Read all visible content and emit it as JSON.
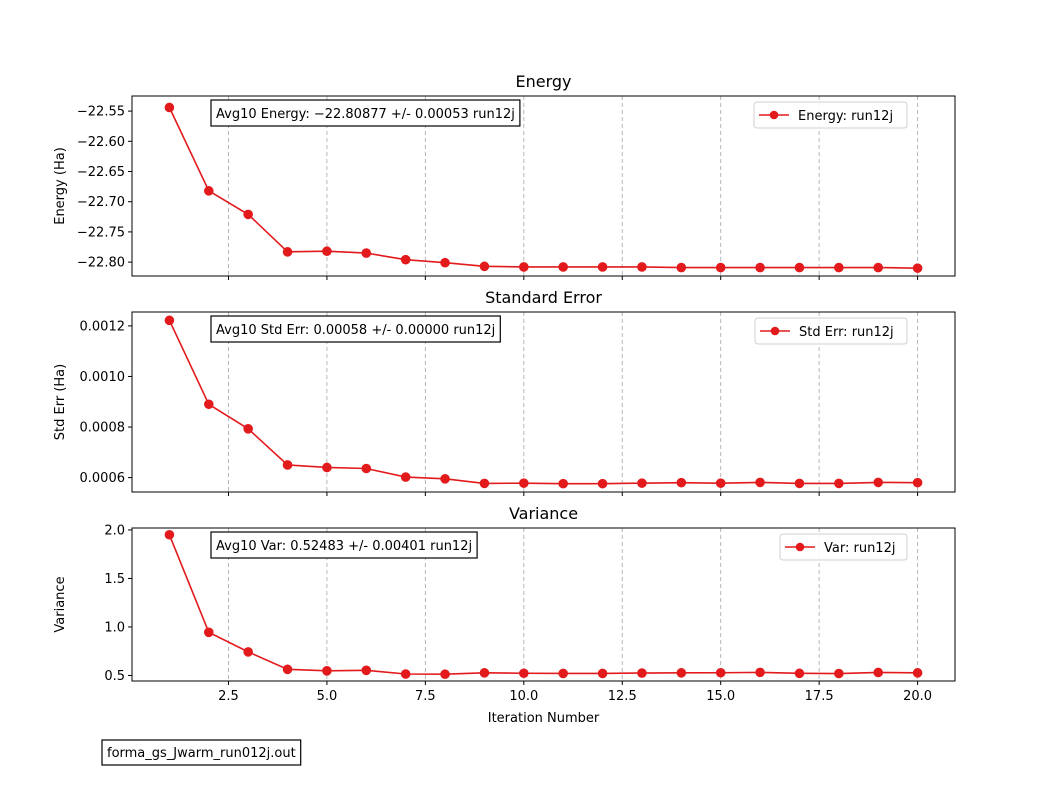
{
  "chart_data": [
    {
      "type": "line",
      "title": "Energy",
      "xlabel": "",
      "ylabel": "Energy (Ha)",
      "x": [
        1,
        2,
        3,
        4,
        5,
        6,
        7,
        8,
        9,
        10,
        11,
        12,
        13,
        14,
        15,
        16,
        17,
        18,
        19,
        20
      ],
      "xlim": [
        0.05,
        20.95
      ],
      "ylim": [
        -22.823,
        -22.525
      ],
      "yticks": [
        -22.8,
        -22.75,
        -22.7,
        -22.65,
        -22.6,
        -22.55
      ],
      "ytick_labels": [
        "−22.80",
        "−22.75",
        "−22.70",
        "−22.65",
        "−22.60",
        "−22.55"
      ],
      "xticks": [
        2.5,
        5.0,
        7.5,
        10.0,
        12.5,
        15.0,
        17.5,
        20.0
      ],
      "xtick_labels": [],
      "grid": "x-dashed",
      "legend": "top-right",
      "annotation": "Avg10 Energy: −22.80877 +/- 0.00053  run12j",
      "series": [
        {
          "name": "Energy: run12j",
          "color": "#e31a1c",
          "values": [
            -22.544,
            -22.682,
            -22.721,
            -22.783,
            -22.782,
            -22.785,
            -22.796,
            -22.801,
            -22.807,
            -22.808,
            -22.808,
            -22.808,
            -22.808,
            -22.809,
            -22.809,
            -22.809,
            -22.809,
            -22.809,
            -22.809,
            -22.81
          ]
        }
      ]
    },
    {
      "type": "line",
      "title": "Standard Error",
      "xlabel": "",
      "ylabel": "Std Err (Ha)",
      "x": [
        1,
        2,
        3,
        4,
        5,
        6,
        7,
        8,
        9,
        10,
        11,
        12,
        13,
        14,
        15,
        16,
        17,
        18,
        19,
        20
      ],
      "xlim": [
        0.05,
        20.95
      ],
      "ylim": [
        0.000543,
        0.001255
      ],
      "yticks": [
        0.0006,
        0.0008,
        0.001,
        0.0012
      ],
      "ytick_labels": [
        "0.0006",
        "0.0008",
        "0.0010",
        "0.0012"
      ],
      "xticks": [
        2.5,
        5.0,
        7.5,
        10.0,
        12.5,
        15.0,
        17.5,
        20.0
      ],
      "xtick_labels": [],
      "grid": "x-dashed",
      "legend": "top-right",
      "annotation": "Avg10 Std Err: 0.00058 +/- 0.00000  run12j",
      "series": [
        {
          "name": "Std Err: run12j",
          "color": "#e31a1c",
          "values": [
            0.001222,
            0.00089,
            0.000793,
            0.00065,
            0.00064,
            0.000636,
            0.000602,
            0.000595,
            0.000577,
            0.000578,
            0.000576,
            0.000576,
            0.000578,
            0.00058,
            0.000578,
            0.000581,
            0.000577,
            0.000577,
            0.000581,
            0.00058
          ]
        }
      ]
    },
    {
      "type": "line",
      "title": "Variance",
      "xlabel": "Iteration Number",
      "ylabel": "Variance",
      "x": [
        1,
        2,
        3,
        4,
        5,
        6,
        7,
        8,
        9,
        10,
        11,
        12,
        13,
        14,
        15,
        16,
        17,
        18,
        19,
        20
      ],
      "xlim": [
        0.05,
        20.95
      ],
      "ylim": [
        0.443,
        2.02
      ],
      "yticks": [
        0.5,
        1.0,
        1.5,
        2.0
      ],
      "ytick_labels": [
        "0.5",
        "1.0",
        "1.5",
        "2.0"
      ],
      "xticks": [
        2.5,
        5.0,
        7.5,
        10.0,
        12.5,
        15.0,
        17.5,
        20.0
      ],
      "xtick_labels": [
        "2.5",
        "5.0",
        "7.5",
        "10.0",
        "12.5",
        "15.0",
        "17.5",
        "20.0"
      ],
      "grid": "x-dashed",
      "legend": "top-right",
      "annotation": "Avg10 Var: 0.52483 +/- 0.00401  run12j",
      "series": [
        {
          "name": "Var: run12j",
          "color": "#e31a1c",
          "values": [
            1.95,
            0.945,
            0.743,
            0.563,
            0.548,
            0.553,
            0.515,
            0.513,
            0.527,
            0.523,
            0.521,
            0.521,
            0.525,
            0.527,
            0.528,
            0.532,
            0.522,
            0.52,
            0.531,
            0.527
          ]
        }
      ]
    }
  ],
  "footer": {
    "label": "forma_gs_Jwarm_run012j.out"
  }
}
